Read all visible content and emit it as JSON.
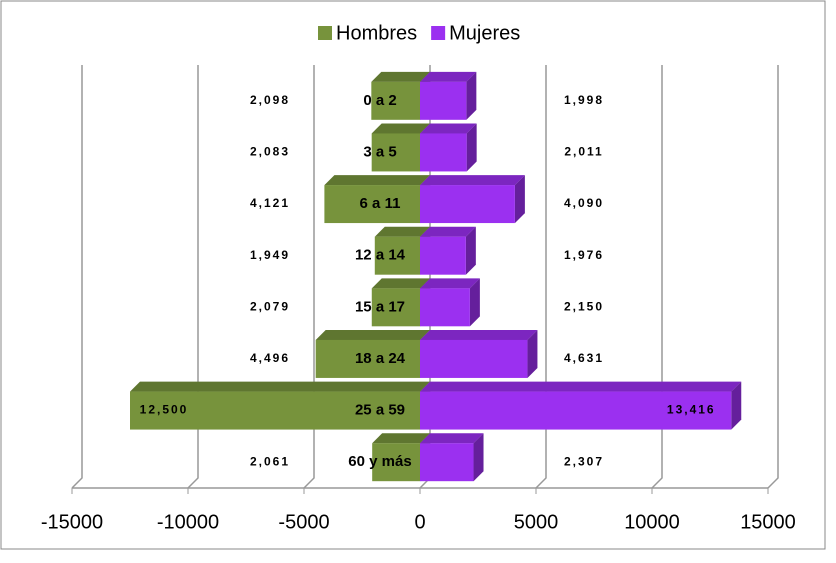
{
  "chart_data": {
    "type": "pyramid",
    "categories": [
      "0 a 2",
      "3 a 5",
      "6 a 11",
      "12 a 14",
      "15 a 17",
      "18 a 24",
      "25 a 59",
      "60 y más"
    ],
    "series": [
      {
        "name": "Hombres",
        "color": "#77933c",
        "values": [
          -2098,
          -2083,
          -4121,
          -1949,
          -2079,
          -4496,
          -12500,
          -2061
        ],
        "value_labels": [
          "2,098",
          "2,083",
          "4,121",
          "1,949",
          "2,079",
          "4,496",
          "12,500",
          "2,061"
        ]
      },
      {
        "name": "Mujeres",
        "color": "#9b30f0",
        "values": [
          1998,
          2011,
          4090,
          1976,
          2150,
          4631,
          13416,
          2307
        ],
        "value_labels": [
          "1,998",
          "2,011",
          "4,090",
          "1,976",
          "2,150",
          "4,631",
          "13,416",
          "2,307"
        ]
      }
    ],
    "xlim": [
      -15000,
      15000
    ],
    "xticks": [
      -15000,
      -10000,
      -5000,
      0,
      5000,
      10000,
      15000
    ],
    "grid": true,
    "legend": "top"
  }
}
